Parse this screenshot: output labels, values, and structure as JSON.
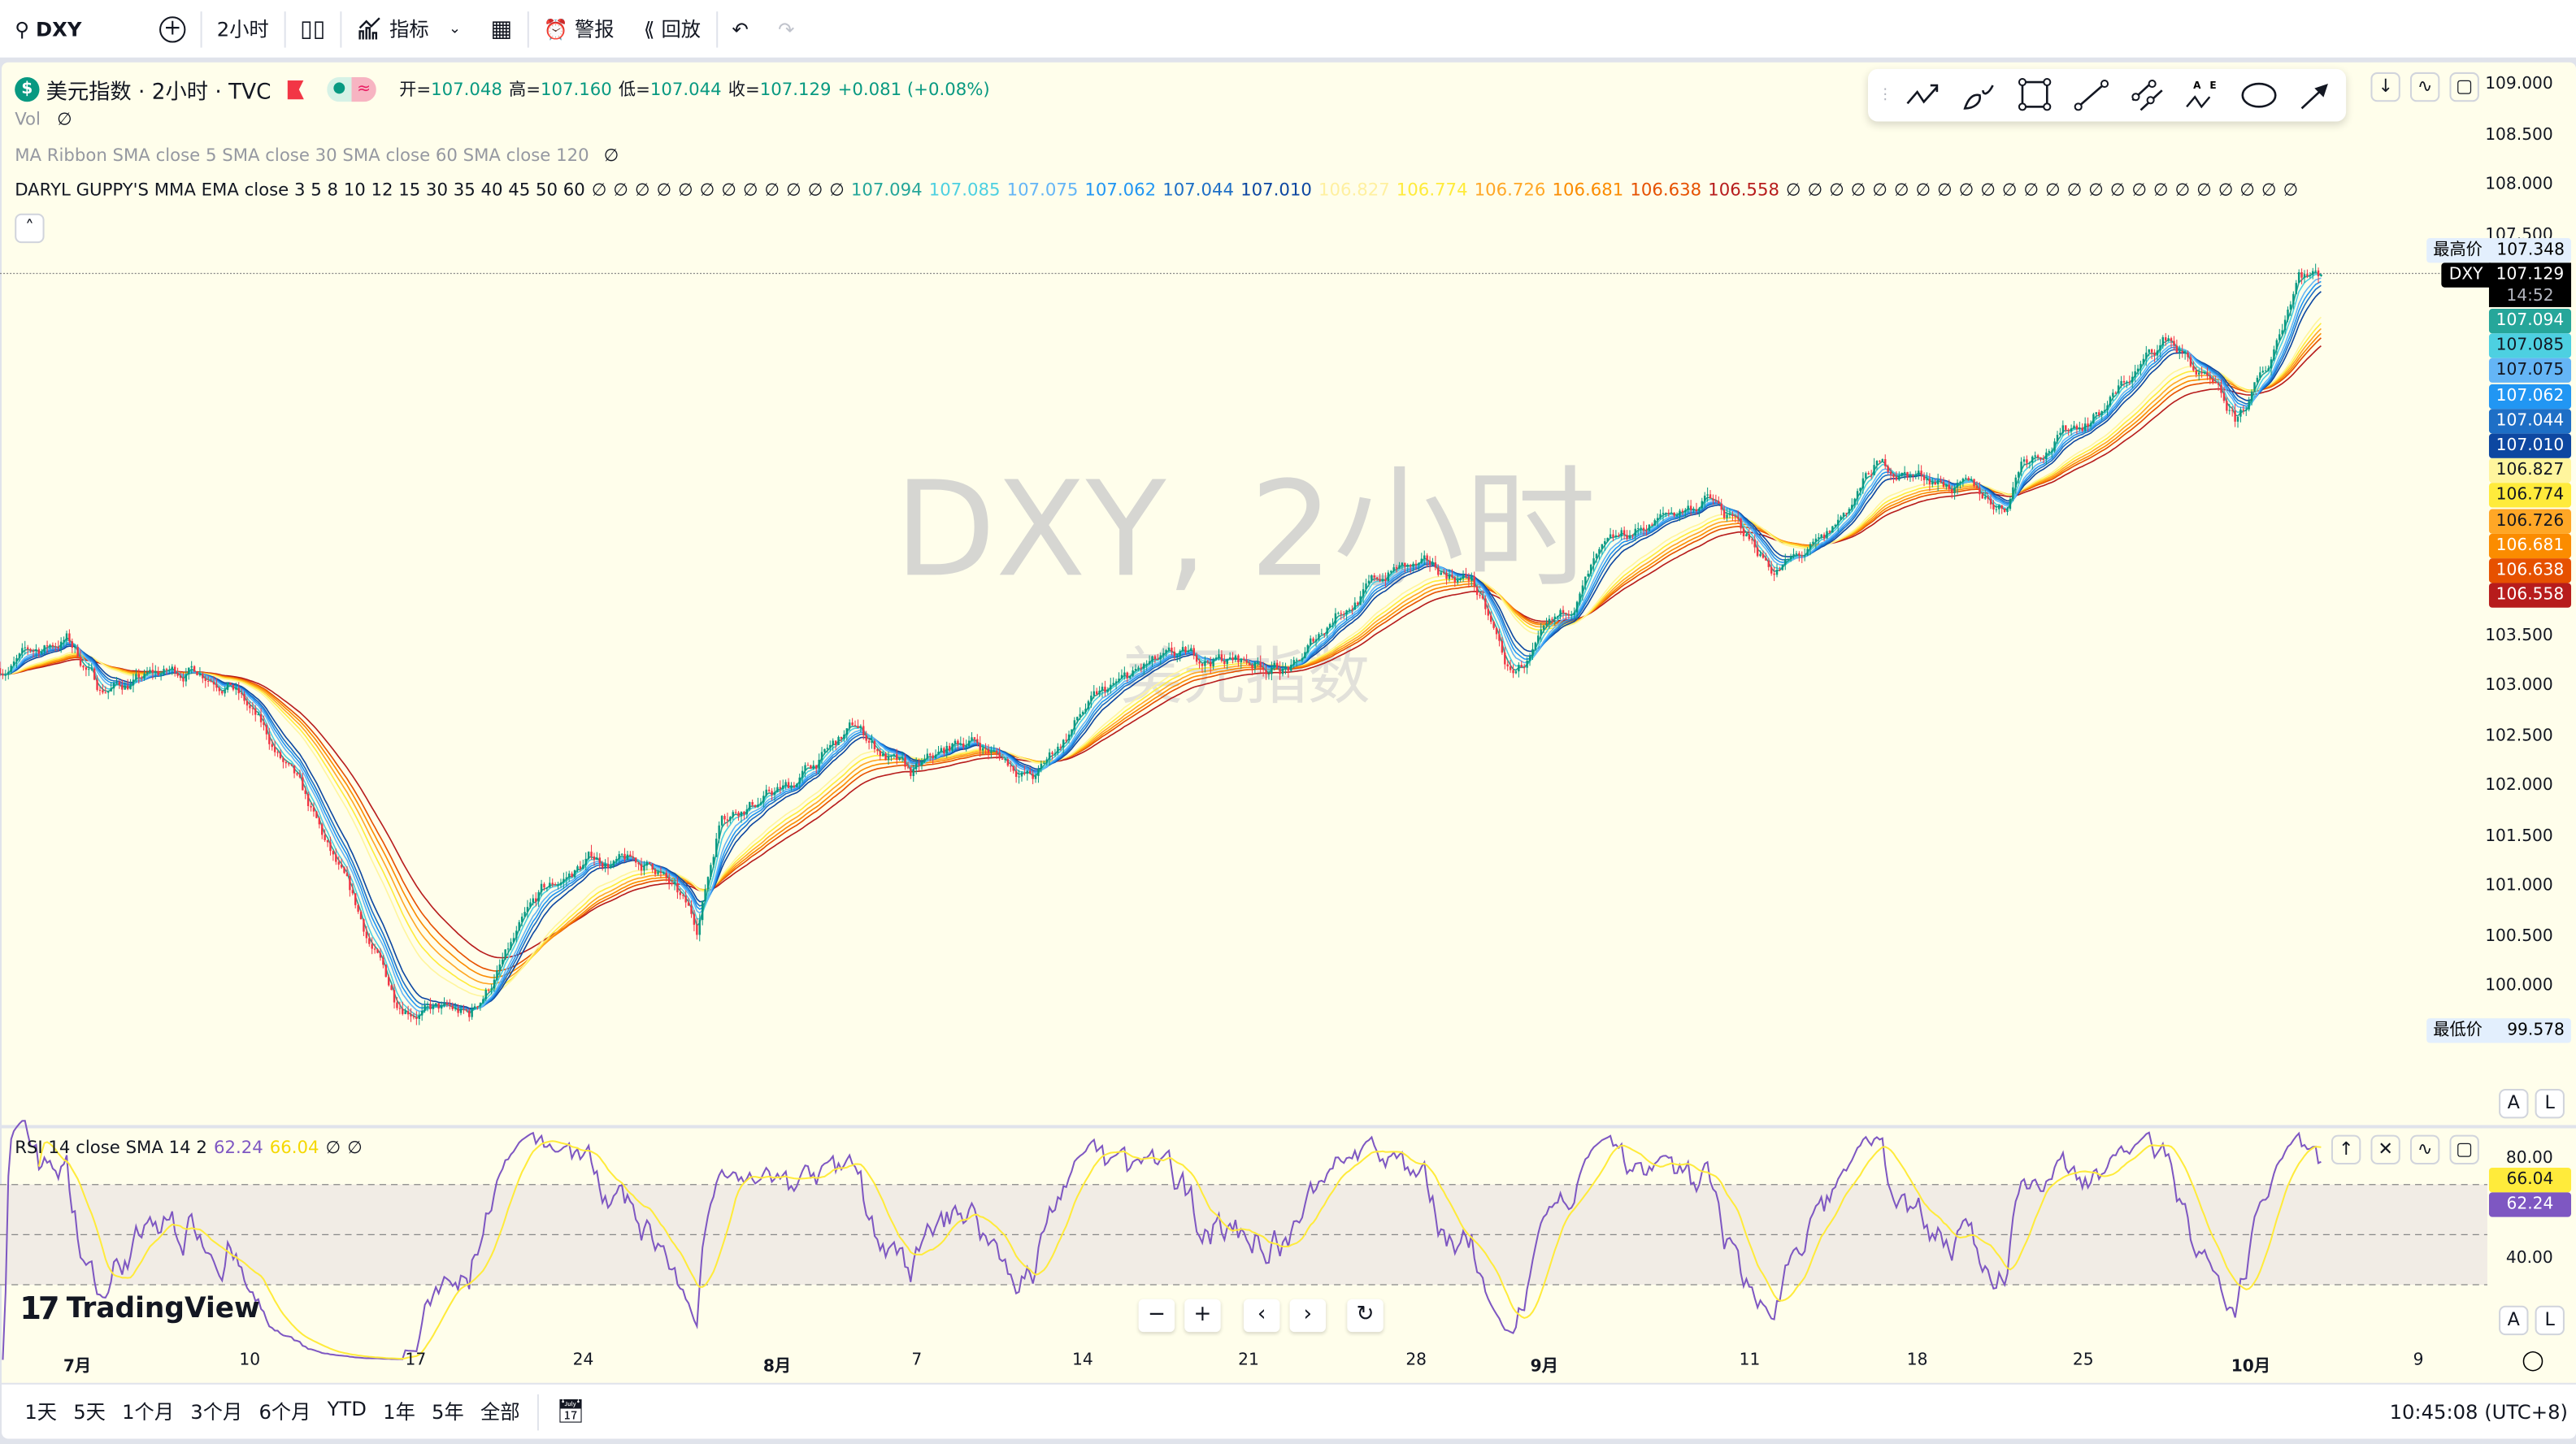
{
  "toolbar": {
    "symbol": "DXY",
    "interval": "2小时",
    "indicators_label": "指标",
    "alert_label": "警报",
    "replay_label": "回放"
  },
  "legend": {
    "title": "美元指数 · 2小时 · TVC",
    "ohlc": [
      {
        "k": "开",
        "v": "107.048"
      },
      {
        "k": "高",
        "v": "107.160"
      },
      {
        "k": "低",
        "v": "107.044"
      },
      {
        "k": "收",
        "v": "107.129"
      }
    ],
    "change": "+0.081 (+0.08%)",
    "vol": "Vol",
    "ma_ribbon": "MA Ribbon SMA close 5 SMA close 30 SMA close 60 SMA close 120",
    "guppy_label": "DARYL GUPPY'S MMA EMA close 3 5 8 10 12 15 30 35 40 45 50 60",
    "guppy_nulls_before": 12,
    "guppy_nulls_after": 24,
    "null_glyph": "∅"
  },
  "guppy": [
    {
      "period": 3,
      "value": "107.094",
      "color": "#26a69a",
      "text": "#fff"
    },
    {
      "period": 5,
      "value": "107.085",
      "color": "#4dd0e1",
      "text": "#131722"
    },
    {
      "period": 8,
      "value": "107.075",
      "color": "#64b5f6",
      "text": "#131722"
    },
    {
      "period": 10,
      "value": "107.062",
      "color": "#2196f3",
      "text": "#fff"
    },
    {
      "period": 12,
      "value": "107.044",
      "color": "#1e6fc6",
      "text": "#fff"
    },
    {
      "period": 15,
      "value": "107.010",
      "color": "#0d47a1",
      "text": "#fff"
    },
    {
      "period": 30,
      "value": "106.827",
      "color": "#fff59d",
      "text": "#131722"
    },
    {
      "period": 35,
      "value": "106.774",
      "color": "#ffeb3b",
      "text": "#131722"
    },
    {
      "period": 40,
      "value": "106.726",
      "color": "#ffa726",
      "text": "#131722"
    },
    {
      "period": 45,
      "value": "106.681",
      "color": "#fb8c00",
      "text": "#fff"
    },
    {
      "period": 50,
      "value": "106.638",
      "color": "#e65100",
      "text": "#fff"
    },
    {
      "period": 60,
      "value": "106.558",
      "color": "#b71c1c",
      "text": "#fff"
    }
  ],
  "watermark": {
    "line1": "DXY, 2小时",
    "line2": "美元指数"
  },
  "price_scale": {
    "ticks": [
      "109.000",
      "108.500",
      "108.000",
      "107.500",
      "103.500",
      "103.000",
      "102.500",
      "102.000",
      "101.500",
      "101.000",
      "100.500",
      "100.000"
    ],
    "high_label": "最高价",
    "high_value": "107.348",
    "low_label": "最低价",
    "low_value": "99.578",
    "current_symbol": "DXY",
    "current_value": "107.129",
    "countdown": "14:52"
  },
  "price_path": {
    "unit": "2h bars",
    "points": [
      [
        0,
        103.2
      ],
      [
        24,
        103.5
      ],
      [
        36,
        103.0
      ],
      [
        71,
        103.2
      ],
      [
        83,
        103.1
      ],
      [
        107,
        102.0
      ],
      [
        124,
        101.0
      ],
      [
        142,
        99.9
      ],
      [
        169,
        99.7
      ],
      [
        195,
        100.9
      ],
      [
        213,
        101.3
      ],
      [
        237,
        101.2
      ],
      [
        251,
        100.6
      ],
      [
        260,
        101.8
      ],
      [
        284,
        102.0
      ],
      [
        308,
        102.6
      ],
      [
        328,
        102.1
      ],
      [
        349,
        102.5
      ],
      [
        373,
        102.1
      ],
      [
        391,
        102.8
      ],
      [
        414,
        103.2
      ],
      [
        438,
        103.3
      ],
      [
        467,
        103.2
      ],
      [
        482,
        103.8
      ],
      [
        503,
        104.2
      ],
      [
        530,
        104.1
      ],
      [
        544,
        103.1
      ],
      [
        562,
        103.6
      ],
      [
        574,
        104.2
      ],
      [
        592,
        104.6
      ],
      [
        615,
        104.9
      ],
      [
        639,
        104.2
      ],
      [
        657,
        104.4
      ],
      [
        675,
        105.2
      ],
      [
        698,
        105.1
      ],
      [
        722,
        104.8
      ],
      [
        728,
        105.3
      ],
      [
        757,
        105.8
      ],
      [
        781,
        106.5
      ],
      [
        793,
        106.1
      ],
      [
        805,
        105.6
      ],
      [
        817,
        106.2
      ],
      [
        828,
        107.2
      ],
      [
        836,
        107.129
      ]
    ],
    "up_color": "#089981",
    "down_color": "#f23645"
  },
  "rsi": {
    "label": "RSI 14 close SMA 14 2",
    "rsi_value": "62.24",
    "sma_value": "66.04",
    "rsi_color": "#7e57c2",
    "sma_color": "#ffeb3b",
    "ticks": [
      "80.00",
      "40.00"
    ],
    "bands": [
      70,
      50,
      30
    ]
  },
  "time_axis": [
    {
      "t": "7月",
      "bold": true
    },
    {
      "t": "10"
    },
    {
      "t": "17"
    },
    {
      "t": "24"
    },
    {
      "t": "8月",
      "bold": true
    },
    {
      "t": "7"
    },
    {
      "t": "14"
    },
    {
      "t": "21"
    },
    {
      "t": "28"
    },
    {
      "t": "9月",
      "bold": true
    },
    {
      "t": "11"
    },
    {
      "t": "18"
    },
    {
      "t": "25"
    },
    {
      "t": "10月",
      "bold": true
    },
    {
      "t": "9"
    }
  ],
  "ranges": [
    "1天",
    "5天",
    "1个月",
    "3个月",
    "6个月",
    "YTD",
    "1年",
    "5年",
    "全部"
  ],
  "clock": "10:45:08 (UTC+8)",
  "logo": "TradingView",
  "scale_buttons": {
    "auto": "A",
    "log": "L"
  }
}
